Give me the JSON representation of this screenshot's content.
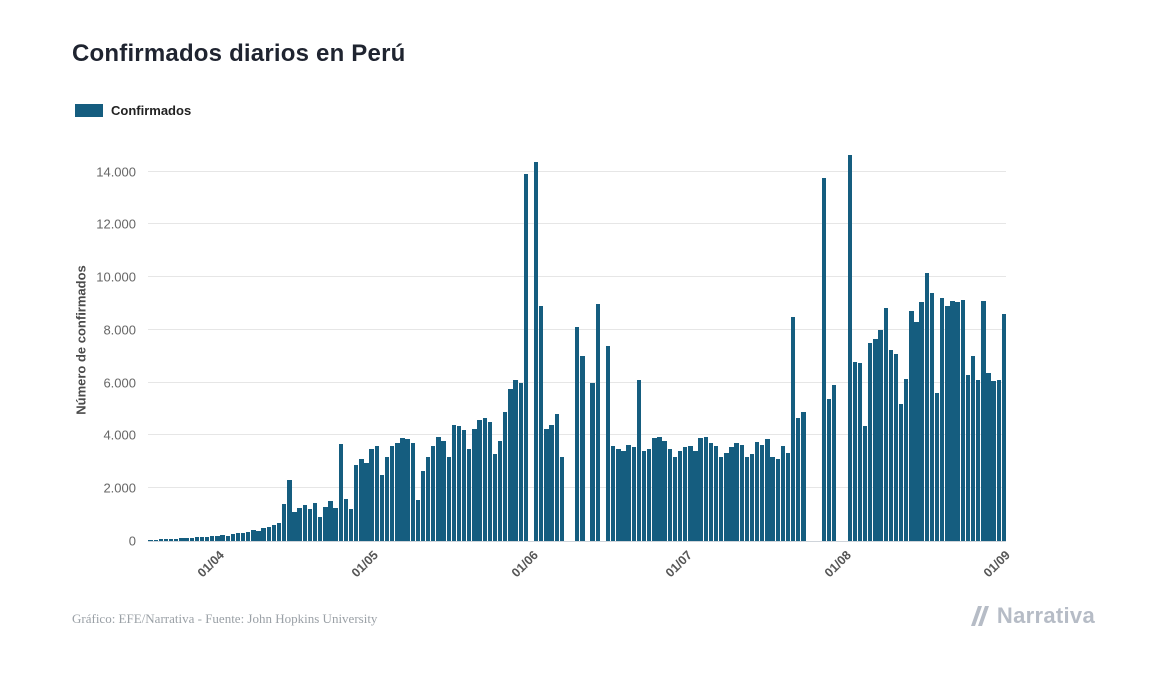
{
  "page": {
    "title": "Confirmados diarios en Perú"
  },
  "legend": {
    "label": "Confirmados"
  },
  "footer": {
    "attribution": "Gráfico: EFE/Narrativa - Fuente: John Hopkins University",
    "brand": "Narrativa"
  },
  "chart_data": {
    "type": "bar",
    "title": "Confirmados diarios en Perú",
    "xlabel": "",
    "ylabel": "Número de confirmados",
    "legend_entries": [
      "Confirmados"
    ],
    "legend_position": "top-left",
    "grid": true,
    "bar_color": "#155d7f",
    "grid_color": "#e6e6e6",
    "axis_line_color": "#cfd4da",
    "ylim": [
      0,
      15200
    ],
    "start_date_label": "19/03",
    "yticks": [
      {
        "value": 0,
        "label": "0"
      },
      {
        "value": 2000,
        "label": "2.000"
      },
      {
        "value": 4000,
        "label": "4.000"
      },
      {
        "value": 6000,
        "label": "6.000"
      },
      {
        "value": 8000,
        "label": "8.000"
      },
      {
        "value": 10000,
        "label": "10.000"
      },
      {
        "value": 12000,
        "label": "12.000"
      },
      {
        "value": 14000,
        "label": "14.000"
      }
    ],
    "xticks": [
      {
        "index": 13,
        "label": "01/04"
      },
      {
        "index": 43,
        "label": "01/05"
      },
      {
        "index": 74,
        "label": "01/06"
      },
      {
        "index": 104,
        "label": "01/07"
      },
      {
        "index": 135,
        "label": "01/08"
      },
      {
        "index": 166,
        "label": "01/09"
      }
    ],
    "values": [
      30,
      45,
      60,
      75,
      90,
      70,
      100,
      120,
      110,
      140,
      160,
      150,
      180,
      200,
      230,
      190,
      280,
      320,
      300,
      360,
      420,
      390,
      480,
      540,
      600,
      680,
      1400,
      2320,
      1100,
      1250,
      1350,
      1200,
      1450,
      900,
      1300,
      1500,
      1250,
      3690,
      1600,
      1200,
      2900,
      3100,
      2950,
      3500,
      3600,
      2500,
      3200,
      3600,
      3700,
      3900,
      3850,
      3700,
      1550,
      2650,
      3200,
      3600,
      3940,
      3800,
      3200,
      4400,
      4350,
      4200,
      3500,
      4250,
      4600,
      4660,
      4500,
      3300,
      3800,
      4900,
      5750,
      6100,
      6000,
      13900,
      0,
      14350,
      8900,
      4250,
      4400,
      4800,
      3200,
      0,
      0,
      8100,
      7000,
      0,
      6000,
      9000,
      0,
      7400,
      3600,
      3500,
      3400,
      3650,
      3550,
      6100,
      3400,
      3500,
      3900,
      3950,
      3800,
      3500,
      3200,
      3400,
      3550,
      3600,
      3400,
      3900,
      3950,
      3700,
      3600,
      3200,
      3350,
      3550,
      3700,
      3650,
      3200,
      3300,
      3750,
      3650,
      3850,
      3200,
      3100,
      3600,
      3350,
      8500,
      4650,
      4900,
      0,
      0,
      0,
      13750,
      5400,
      5900,
      0,
      0,
      14650,
      6800,
      6750,
      4350,
      7500,
      7650,
      8000,
      8850,
      7250,
      7100,
      5200,
      6150,
      8700,
      8300,
      9050,
      10150,
      9400,
      5600,
      9200,
      8900,
      9100,
      9050,
      9150,
      6300,
      7000,
      6100,
      9100,
      6350,
      6050,
      6100,
      8600
    ]
  }
}
